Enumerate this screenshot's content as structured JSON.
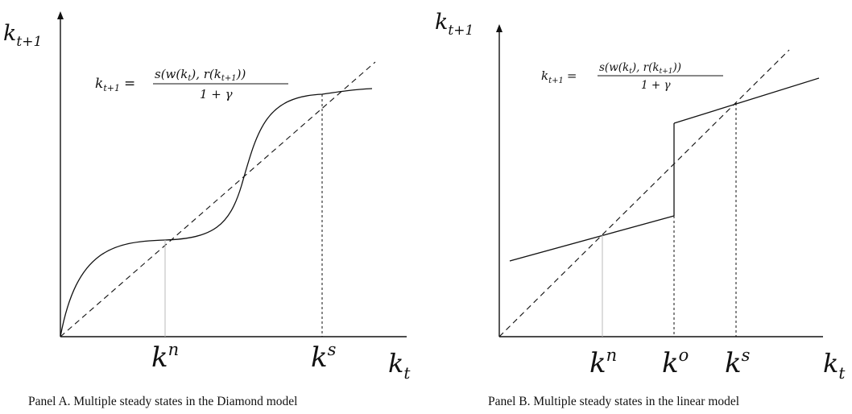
{
  "panel_a": {
    "y_axis_label": "k",
    "y_axis_sub": "t+1",
    "x_axis_label": "k",
    "x_axis_sub": "t",
    "equation": {
      "lhs": "k",
      "lhs_sub": "t+1",
      "equals": "=",
      "numerator": "s(w(k",
      "numerator_sub1": "t",
      "numerator_mid": "), r(k",
      "numerator_sub2": "t+1",
      "numerator_end": "))",
      "denominator": "1 + γ"
    },
    "tick_kn": "k",
    "tick_kn_sup": "n",
    "tick_ks": "k",
    "tick_ks_sup": "s",
    "caption": "Panel A.  Multiple steady states in the Diamond model"
  },
  "panel_b": {
    "y_axis_label": "k",
    "y_axis_sub": "t+1",
    "x_axis_label": "k",
    "x_axis_sub": "t",
    "equation": {
      "lhs": "k",
      "lhs_sub": "t+1",
      "equals": "=",
      "numerator": "s(w(k",
      "numerator_sub1": "t",
      "numerator_mid": "), r(k",
      "numerator_sub2": "t+1",
      "numerator_end": "))",
      "denominator": "1 + γ"
    },
    "tick_kn": "k",
    "tick_kn_sup": "n",
    "tick_ko": "k",
    "tick_ko_sup": "o",
    "tick_ks": "k",
    "tick_ks_sup": "s",
    "caption": "Panel B.  Multiple steady states in the linear model"
  },
  "colors": {
    "ink": "#111111",
    "faint": "#bbbbbb"
  }
}
